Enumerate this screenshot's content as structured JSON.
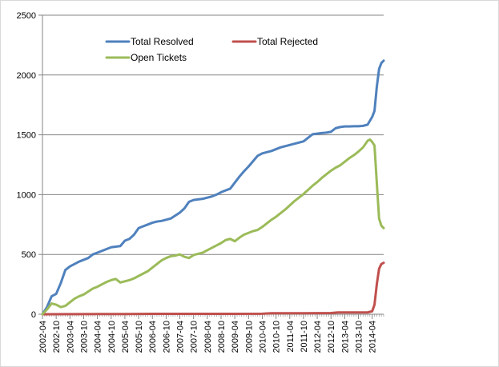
{
  "chart_data": {
    "type": "line",
    "xlabel": "",
    "ylabel": "",
    "ylim": [
      0,
      2500
    ],
    "y_ticks": [
      0,
      500,
      1000,
      1500,
      2000,
      2500
    ],
    "y_tick_labels": [
      "0",
      "500",
      "1000",
      "1500",
      "2000",
      "2500"
    ],
    "x_tick_labels": [
      "2002-04",
      "2002-10",
      "2003-04",
      "2003-10",
      "2004-04",
      "2004-10",
      "2005-04",
      "2005-10",
      "2006-04",
      "2006-10",
      "2007-04",
      "2007-10",
      "2008-04",
      "2008-10",
      "2009-04",
      "2009-10",
      "2010-04",
      "2010-10",
      "2011-04",
      "2011-10",
      "2012-04",
      "2012-10",
      "2013-04",
      "2013-10",
      "2014-04"
    ],
    "x_range": [
      "2002-04",
      "2014-09"
    ],
    "grid": "horizontal",
    "legend_position": "top-left",
    "series": [
      {
        "name": "Total Resolved",
        "color": "#4f81bd",
        "points": [
          [
            "2002-04",
            0
          ],
          [
            "2002-06",
            60
          ],
          [
            "2002-08",
            150
          ],
          [
            "2002-10",
            170
          ],
          [
            "2002-12",
            260
          ],
          [
            "2003-02",
            370
          ],
          [
            "2003-04",
            400
          ],
          [
            "2003-06",
            420
          ],
          [
            "2003-08",
            440
          ],
          [
            "2003-10",
            455
          ],
          [
            "2003-12",
            470
          ],
          [
            "2004-02",
            500
          ],
          [
            "2004-04",
            515
          ],
          [
            "2004-06",
            530
          ],
          [
            "2004-08",
            545
          ],
          [
            "2004-10",
            560
          ],
          [
            "2004-12",
            565
          ],
          [
            "2005-02",
            570
          ],
          [
            "2005-04",
            615
          ],
          [
            "2005-06",
            630
          ],
          [
            "2005-08",
            665
          ],
          [
            "2005-10",
            720
          ],
          [
            "2005-12",
            735
          ],
          [
            "2006-02",
            750
          ],
          [
            "2006-04",
            765
          ],
          [
            "2006-06",
            775
          ],
          [
            "2006-08",
            780
          ],
          [
            "2006-10",
            790
          ],
          [
            "2006-12",
            800
          ],
          [
            "2007-02",
            825
          ],
          [
            "2007-04",
            850
          ],
          [
            "2007-06",
            885
          ],
          [
            "2007-08",
            940
          ],
          [
            "2007-10",
            955
          ],
          [
            "2007-12",
            960
          ],
          [
            "2008-02",
            965
          ],
          [
            "2008-04",
            975
          ],
          [
            "2008-06",
            985
          ],
          [
            "2008-08",
            1000
          ],
          [
            "2008-10",
            1020
          ],
          [
            "2008-12",
            1035
          ],
          [
            "2009-02",
            1050
          ],
          [
            "2009-04",
            1100
          ],
          [
            "2009-06",
            1150
          ],
          [
            "2009-08",
            1195
          ],
          [
            "2009-10",
            1235
          ],
          [
            "2009-12",
            1280
          ],
          [
            "2010-02",
            1325
          ],
          [
            "2010-04",
            1345
          ],
          [
            "2010-06",
            1355
          ],
          [
            "2010-08",
            1365
          ],
          [
            "2010-10",
            1380
          ],
          [
            "2010-12",
            1395
          ],
          [
            "2011-02",
            1405
          ],
          [
            "2011-04",
            1415
          ],
          [
            "2011-06",
            1425
          ],
          [
            "2011-08",
            1435
          ],
          [
            "2011-10",
            1445
          ],
          [
            "2011-12",
            1475
          ],
          [
            "2012-02",
            1505
          ],
          [
            "2012-04",
            1510
          ],
          [
            "2012-06",
            1515
          ],
          [
            "2012-08",
            1518
          ],
          [
            "2012-10",
            1525
          ],
          [
            "2012-12",
            1555
          ],
          [
            "2013-02",
            1565
          ],
          [
            "2013-04",
            1570
          ],
          [
            "2013-06",
            1570
          ],
          [
            "2013-08",
            1572
          ],
          [
            "2013-10",
            1572
          ],
          [
            "2013-12",
            1575
          ],
          [
            "2014-02",
            1585
          ],
          [
            "2014-04",
            1650
          ],
          [
            "2014-05",
            1700
          ],
          [
            "2014-06",
            1900
          ],
          [
            "2014-07",
            2050
          ],
          [
            "2014-08",
            2100
          ],
          [
            "2014-09",
            2120
          ]
        ]
      },
      {
        "name": "Total Rejected",
        "color": "#c0504d",
        "points": [
          [
            "2002-04",
            0
          ],
          [
            "2003-04",
            1
          ],
          [
            "2004-04",
            2
          ],
          [
            "2005-04",
            2
          ],
          [
            "2006-04",
            3
          ],
          [
            "2007-04",
            3
          ],
          [
            "2008-04",
            3
          ],
          [
            "2009-04",
            3
          ],
          [
            "2010-04",
            4
          ],
          [
            "2010-08",
            8
          ],
          [
            "2011-04",
            8
          ],
          [
            "2012-04",
            9
          ],
          [
            "2012-10",
            10
          ],
          [
            "2013-01",
            15
          ],
          [
            "2013-10",
            15
          ],
          [
            "2014-02",
            15
          ],
          [
            "2014-04",
            25
          ],
          [
            "2014-05",
            80
          ],
          [
            "2014-06",
            250
          ],
          [
            "2014-07",
            380
          ],
          [
            "2014-08",
            420
          ],
          [
            "2014-09",
            430
          ]
        ]
      },
      {
        "name": "Open Tickets",
        "color": "#9bbb59",
        "points": [
          [
            "2002-04",
            0
          ],
          [
            "2002-06",
            40
          ],
          [
            "2002-08",
            90
          ],
          [
            "2002-10",
            80
          ],
          [
            "2002-12",
            60
          ],
          [
            "2003-02",
            70
          ],
          [
            "2003-04",
            100
          ],
          [
            "2003-06",
            130
          ],
          [
            "2003-08",
            150
          ],
          [
            "2003-10",
            165
          ],
          [
            "2003-12",
            190
          ],
          [
            "2004-02",
            215
          ],
          [
            "2004-04",
            230
          ],
          [
            "2004-06",
            250
          ],
          [
            "2004-08",
            270
          ],
          [
            "2004-10",
            285
          ],
          [
            "2004-12",
            295
          ],
          [
            "2005-02",
            265
          ],
          [
            "2005-04",
            275
          ],
          [
            "2005-06",
            285
          ],
          [
            "2005-08",
            300
          ],
          [
            "2005-10",
            320
          ],
          [
            "2005-12",
            340
          ],
          [
            "2006-02",
            360
          ],
          [
            "2006-04",
            390
          ],
          [
            "2006-06",
            420
          ],
          [
            "2006-08",
            450
          ],
          [
            "2006-10",
            470
          ],
          [
            "2006-12",
            485
          ],
          [
            "2007-02",
            490
          ],
          [
            "2007-04",
            500
          ],
          [
            "2007-06",
            480
          ],
          [
            "2007-08",
            470
          ],
          [
            "2007-10",
            495
          ],
          [
            "2007-12",
            505
          ],
          [
            "2008-02",
            515
          ],
          [
            "2008-04",
            535
          ],
          [
            "2008-06",
            555
          ],
          [
            "2008-08",
            575
          ],
          [
            "2008-10",
            595
          ],
          [
            "2008-12",
            620
          ],
          [
            "2009-02",
            630
          ],
          [
            "2009-04",
            610
          ],
          [
            "2009-06",
            640
          ],
          [
            "2009-08",
            665
          ],
          [
            "2009-10",
            680
          ],
          [
            "2009-12",
            695
          ],
          [
            "2010-02",
            705
          ],
          [
            "2010-04",
            730
          ],
          [
            "2010-06",
            760
          ],
          [
            "2010-08",
            790
          ],
          [
            "2010-10",
            815
          ],
          [
            "2010-12",
            845
          ],
          [
            "2011-02",
            875
          ],
          [
            "2011-04",
            910
          ],
          [
            "2011-06",
            945
          ],
          [
            "2011-08",
            975
          ],
          [
            "2011-10",
            1005
          ],
          [
            "2011-12",
            1040
          ],
          [
            "2012-02",
            1075
          ],
          [
            "2012-04",
            1105
          ],
          [
            "2012-06",
            1140
          ],
          [
            "2012-08",
            1170
          ],
          [
            "2012-10",
            1200
          ],
          [
            "2012-12",
            1225
          ],
          [
            "2013-02",
            1245
          ],
          [
            "2013-04",
            1275
          ],
          [
            "2013-06",
            1305
          ],
          [
            "2013-08",
            1330
          ],
          [
            "2013-10",
            1360
          ],
          [
            "2013-12",
            1395
          ],
          [
            "2014-02",
            1450
          ],
          [
            "2014-03",
            1460
          ],
          [
            "2014-04",
            1440
          ],
          [
            "2014-05",
            1410
          ],
          [
            "2014-06",
            1100
          ],
          [
            "2014-07",
            800
          ],
          [
            "2014-08",
            740
          ],
          [
            "2014-09",
            720
          ]
        ]
      }
    ]
  }
}
